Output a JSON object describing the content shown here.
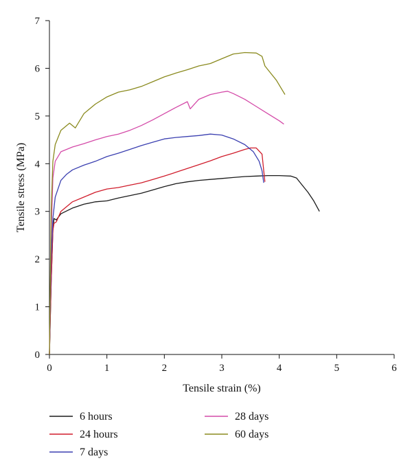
{
  "chart_data": {
    "type": "line",
    "xlabel": "Tensile strain (%)",
    "ylabel": "Tensile stress (MPa)",
    "xlim": [
      0,
      6
    ],
    "ylim": [
      0,
      7
    ],
    "xticks": [
      "0",
      "1",
      "2",
      "3",
      "4",
      "5",
      "6"
    ],
    "yticks": [
      "0",
      "1",
      "2",
      "3",
      "4",
      "5",
      "6",
      "7"
    ],
    "grid": false,
    "legend_position": "bottom",
    "series": [
      {
        "name": "6 hours",
        "color": "#1a1a1a",
        "points": [
          [
            0,
            0
          ],
          [
            0.03,
            1.5
          ],
          [
            0.06,
            2.6
          ],
          [
            0.08,
            2.85
          ],
          [
            0.12,
            2.82
          ],
          [
            0.2,
            2.95
          ],
          [
            0.4,
            3.07
          ],
          [
            0.6,
            3.15
          ],
          [
            0.8,
            3.2
          ],
          [
            1.0,
            3.22
          ],
          [
            1.2,
            3.28
          ],
          [
            1.4,
            3.33
          ],
          [
            1.6,
            3.38
          ],
          [
            1.8,
            3.45
          ],
          [
            2.0,
            3.52
          ],
          [
            2.2,
            3.58
          ],
          [
            2.4,
            3.62
          ],
          [
            2.6,
            3.65
          ],
          [
            2.8,
            3.67
          ],
          [
            3.0,
            3.69
          ],
          [
            3.2,
            3.71
          ],
          [
            3.4,
            3.73
          ],
          [
            3.6,
            3.74
          ],
          [
            3.8,
            3.75
          ],
          [
            4.0,
            3.75
          ],
          [
            4.2,
            3.74
          ],
          [
            4.3,
            3.7
          ],
          [
            4.4,
            3.55
          ],
          [
            4.5,
            3.4
          ],
          [
            4.6,
            3.22
          ],
          [
            4.7,
            3.0
          ]
        ]
      },
      {
        "name": "24 hours",
        "color": "#d01c2b",
        "points": [
          [
            0,
            0
          ],
          [
            0.03,
            1.5
          ],
          [
            0.06,
            2.6
          ],
          [
            0.08,
            2.75
          ],
          [
            0.12,
            2.78
          ],
          [
            0.2,
            3.0
          ],
          [
            0.4,
            3.2
          ],
          [
            0.6,
            3.3
          ],
          [
            0.8,
            3.4
          ],
          [
            1.0,
            3.47
          ],
          [
            1.2,
            3.5
          ],
          [
            1.4,
            3.55
          ],
          [
            1.6,
            3.6
          ],
          [
            1.8,
            3.67
          ],
          [
            2.0,
            3.74
          ],
          [
            2.2,
            3.82
          ],
          [
            2.4,
            3.9
          ],
          [
            2.6,
            3.98
          ],
          [
            2.8,
            4.06
          ],
          [
            3.0,
            4.15
          ],
          [
            3.2,
            4.22
          ],
          [
            3.4,
            4.3
          ],
          [
            3.5,
            4.33
          ],
          [
            3.6,
            4.33
          ],
          [
            3.7,
            4.2
          ],
          [
            3.73,
            3.85
          ],
          [
            3.75,
            3.62
          ]
        ]
      },
      {
        "name": "7 days",
        "color": "#3a3fb0",
        "points": [
          [
            0,
            0
          ],
          [
            0.03,
            2.0
          ],
          [
            0.06,
            2.85
          ],
          [
            0.1,
            3.3
          ],
          [
            0.2,
            3.65
          ],
          [
            0.3,
            3.78
          ],
          [
            0.4,
            3.87
          ],
          [
            0.6,
            3.97
          ],
          [
            0.8,
            4.05
          ],
          [
            1.0,
            4.15
          ],
          [
            1.2,
            4.22
          ],
          [
            1.4,
            4.3
          ],
          [
            1.6,
            4.38
          ],
          [
            1.8,
            4.45
          ],
          [
            2.0,
            4.52
          ],
          [
            2.2,
            4.55
          ],
          [
            2.4,
            4.57
          ],
          [
            2.6,
            4.59
          ],
          [
            2.8,
            4.62
          ],
          [
            3.0,
            4.6
          ],
          [
            3.2,
            4.52
          ],
          [
            3.4,
            4.4
          ],
          [
            3.55,
            4.25
          ],
          [
            3.65,
            4.05
          ],
          [
            3.7,
            3.85
          ],
          [
            3.73,
            3.6
          ]
        ]
      },
      {
        "name": "28 days",
        "color": "#d44aa8",
        "points": [
          [
            0,
            0
          ],
          [
            0.03,
            2.5
          ],
          [
            0.06,
            3.7
          ],
          [
            0.1,
            4.05
          ],
          [
            0.2,
            4.25
          ],
          [
            0.4,
            4.35
          ],
          [
            0.6,
            4.42
          ],
          [
            0.8,
            4.5
          ],
          [
            1.0,
            4.57
          ],
          [
            1.2,
            4.62
          ],
          [
            1.4,
            4.7
          ],
          [
            1.6,
            4.8
          ],
          [
            1.8,
            4.92
          ],
          [
            2.0,
            5.05
          ],
          [
            2.2,
            5.18
          ],
          [
            2.4,
            5.3
          ],
          [
            2.45,
            5.15
          ],
          [
            2.6,
            5.35
          ],
          [
            2.8,
            5.45
          ],
          [
            3.0,
            5.5
          ],
          [
            3.1,
            5.52
          ],
          [
            3.2,
            5.47
          ],
          [
            3.4,
            5.35
          ],
          [
            3.6,
            5.2
          ],
          [
            3.8,
            5.05
          ],
          [
            4.0,
            4.9
          ],
          [
            4.08,
            4.83
          ]
        ]
      },
      {
        "name": "60 days",
        "color": "#8a8a1e",
        "points": [
          [
            0,
            0
          ],
          [
            0.03,
            3.0
          ],
          [
            0.06,
            4.05
          ],
          [
            0.1,
            4.4
          ],
          [
            0.2,
            4.7
          ],
          [
            0.35,
            4.85
          ],
          [
            0.45,
            4.75
          ],
          [
            0.6,
            5.05
          ],
          [
            0.8,
            5.25
          ],
          [
            1.0,
            5.4
          ],
          [
            1.2,
            5.5
          ],
          [
            1.4,
            5.55
          ],
          [
            1.6,
            5.62
          ],
          [
            1.8,
            5.72
          ],
          [
            2.0,
            5.82
          ],
          [
            2.2,
            5.9
          ],
          [
            2.4,
            5.97
          ],
          [
            2.6,
            6.05
          ],
          [
            2.8,
            6.1
          ],
          [
            3.0,
            6.2
          ],
          [
            3.2,
            6.3
          ],
          [
            3.4,
            6.33
          ],
          [
            3.6,
            6.32
          ],
          [
            3.7,
            6.25
          ],
          [
            3.75,
            6.05
          ],
          [
            3.85,
            5.9
          ],
          [
            3.95,
            5.75
          ],
          [
            4.05,
            5.55
          ],
          [
            4.1,
            5.45
          ]
        ]
      }
    ]
  }
}
